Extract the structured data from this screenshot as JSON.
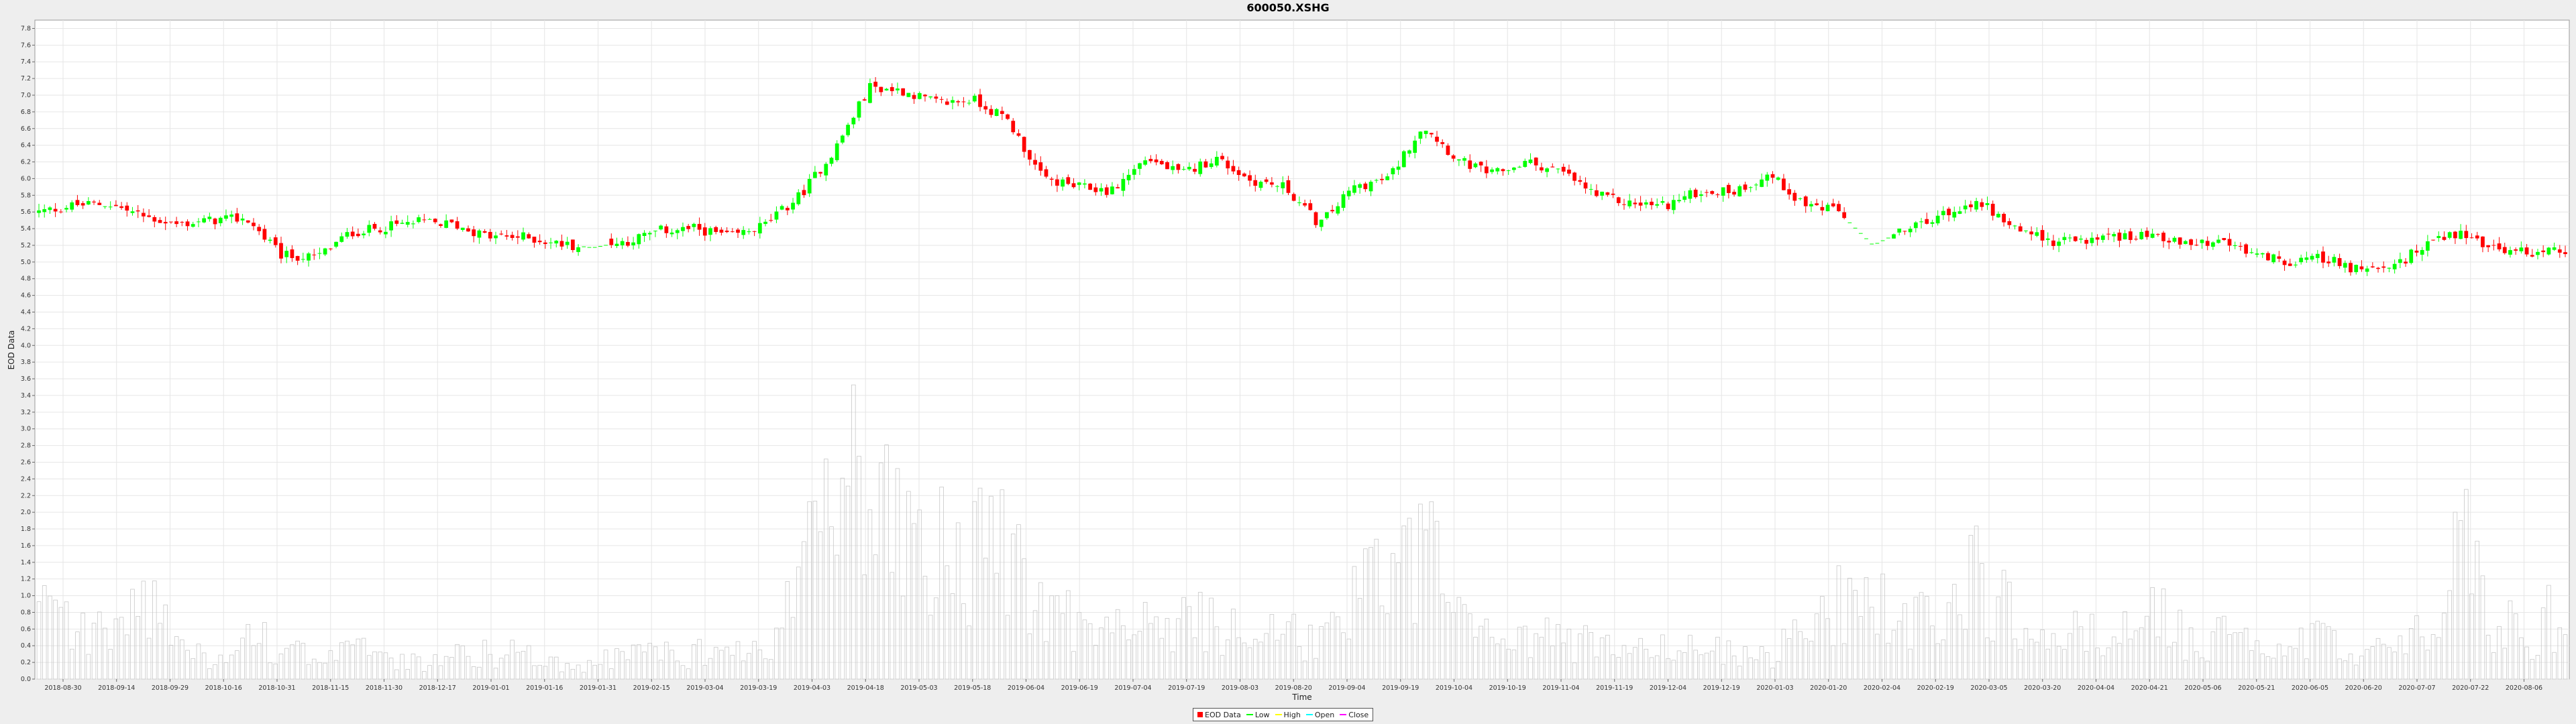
{
  "chart_data": {
    "type": "candlestick",
    "title": "600050.XSHG",
    "xlabel": "Time",
    "ylabel": "EOD Data",
    "ylim": [
      0.0,
      7.9
    ],
    "y_tick_step": 0.2,
    "grid": true,
    "legend_position": "bottom",
    "legend": [
      "EOD Data",
      "Low",
      "High",
      "Open",
      "Close"
    ],
    "x_ticks": [
      "2018-08-30",
      "2018-09-14",
      "2018-09-29",
      "2018-10-16",
      "2018-10-31",
      "2018-11-15",
      "2018-11-30",
      "2018-12-17",
      "2019-01-01",
      "2019-01-16",
      "2019-01-31",
      "2019-02-15",
      "2019-03-04",
      "2019-03-19",
      "2019-04-03",
      "2019-04-18",
      "2019-05-03",
      "2019-05-18",
      "2019-06-04",
      "2019-06-19",
      "2019-07-04",
      "2019-07-19",
      "2019-08-03",
      "2019-08-20",
      "2019-09-04",
      "2019-09-19",
      "2019-10-04",
      "2019-10-19",
      "2019-11-04",
      "2019-11-19",
      "2019-12-04",
      "2019-12-19",
      "2020-01-03",
      "2020-01-20",
      "2020-02-04",
      "2020-02-19",
      "2020-03-05",
      "2020-03-20",
      "2020-04-04",
      "2020-04-21",
      "2020-05-06",
      "2020-05-21",
      "2020-06-05",
      "2020-06-20",
      "2020-07-07",
      "2020-07-22",
      "2020-08-06"
    ],
    "close_anchors": [
      5.6,
      5.68,
      5.7,
      5.55,
      5.45,
      5.5,
      5.52,
      5.08,
      5.05,
      5.35,
      5.42,
      5.48,
      5.45,
      5.3,
      5.3,
      5.22,
      5.17,
      5.25,
      5.38,
      5.4,
      5.3,
      5.45,
      5.8,
      6.35,
      7.1,
      7.05,
      6.9,
      6.95,
      6.7,
      6.0,
      5.9,
      5.85,
      6.25,
      6.05,
      6.25,
      5.98,
      5.9,
      5.45,
      5.9,
      6.0,
      6.65,
      6.22,
      6.05,
      6.2,
      6.08,
      5.8,
      5.7,
      5.68,
      5.85,
      5.85,
      6.05,
      5.7,
      5.6,
      5.2,
      5.4,
      5.55,
      5.75,
      5.45,
      5.25,
      5.25,
      5.3,
      5.35,
      5.2,
      5.25,
      5.1,
      5.0,
      5.05,
      4.9,
      4.9,
      5.25,
      5.35,
      5.15,
      5.12,
      5.15
    ],
    "volume_envelope": [
      0.8,
      0.6,
      0.5,
      1.1,
      0.4,
      0.3,
      0.5,
      0.4,
      0.3,
      0.4,
      0.2,
      0.2,
      0.3,
      0.3,
      0.3,
      0.2,
      0.2,
      0.3,
      0.3,
      0.3,
      0.3,
      0.3,
      1.2,
      2.2,
      2.6,
      1.8,
      1.5,
      1.4,
      1.8,
      1.0,
      0.7,
      0.6,
      0.6,
      0.8,
      0.6,
      0.5,
      0.5,
      0.5,
      0.9,
      1.2,
      1.6,
      0.7,
      0.4,
      0.4,
      0.5,
      0.4,
      0.3,
      0.4,
      0.4,
      0.3,
      0.3,
      0.5,
      0.9,
      0.9,
      0.6,
      0.8,
      1.2,
      0.8,
      0.5,
      0.6,
      0.5,
      0.8,
      0.5,
      0.5,
      0.4,
      0.4,
      0.5,
      0.4,
      0.3,
      0.7,
      1.6,
      0.7,
      0.5,
      0.9
    ],
    "candle_count": 460,
    "gaps": [
      [
        0.215,
        0.225
      ],
      [
        0.715,
        0.733
      ]
    ],
    "colors": {
      "up": "#00ff00",
      "down": "#ff0000",
      "volume": "#c8c8c8",
      "grid": "#e6e6e6"
    }
  }
}
